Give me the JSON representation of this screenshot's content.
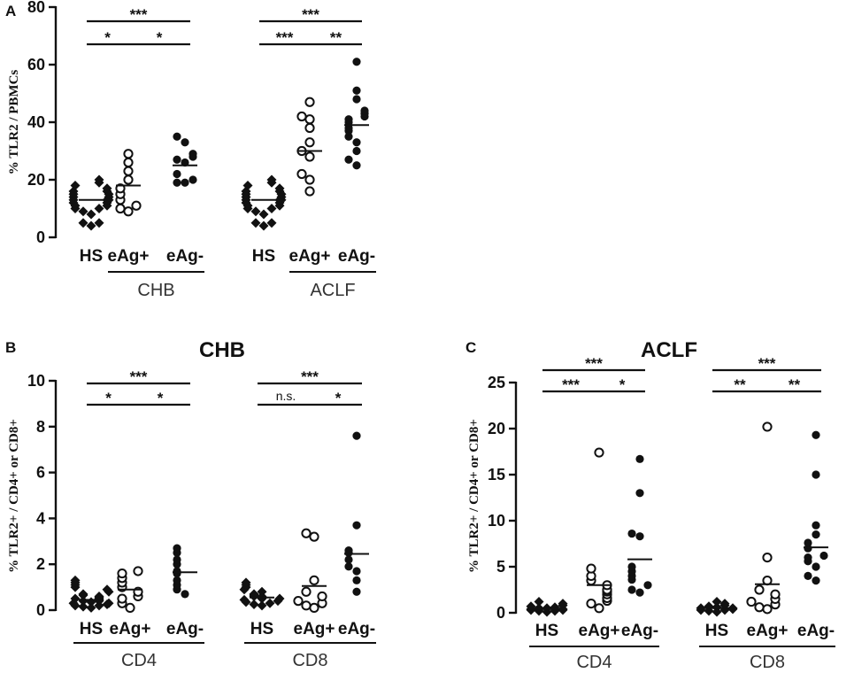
{
  "chart_data": [
    {
      "id": "A",
      "type": "scatter",
      "panel_letter": "A",
      "title": "",
      "ylabel": "% TLR2 / PBMCs",
      "ylim": [
        0,
        80
      ],
      "yticks": [
        "0",
        "20",
        "40",
        "60",
        "80"
      ],
      "groups": [
        {
          "label": "CHB",
          "categories": [
            {
              "label": "HS",
              "marker": "diamond",
              "mean": 13,
              "values": [
                4,
                5,
                5,
                8,
                9,
                10,
                10,
                11,
                11,
                12,
                12,
                13,
                13,
                13,
                14,
                14,
                15,
                15,
                16,
                16,
                17,
                18,
                19,
                20
              ]
            },
            {
              "label": "eAg+",
              "marker": "open-circle",
              "mean": 18,
              "values": [
                9,
                10,
                11,
                13,
                15,
                17,
                20,
                23,
                26,
                29
              ]
            },
            {
              "label": "eAg-",
              "marker": "filled-circle",
              "mean": 25,
              "values": [
                19,
                19,
                20,
                22,
                26,
                27,
                28,
                29,
                33,
                35
              ]
            }
          ],
          "significance": [
            {
              "from": 0,
              "to": 2,
              "level": 0,
              "label": "***"
            },
            {
              "from": 0,
              "to": 1,
              "level": 1,
              "label": "*"
            },
            {
              "from": 1,
              "to": 2,
              "level": 1,
              "label": "*"
            }
          ]
        },
        {
          "label": "ACLF",
          "categories": [
            {
              "label": "HS",
              "marker": "diamond",
              "mean": 13,
              "values": [
                4,
                5,
                5,
                8,
                9,
                10,
                10,
                11,
                11,
                12,
                12,
                13,
                13,
                13,
                14,
                14,
                15,
                15,
                16,
                16,
                17,
                18,
                19,
                20
              ]
            },
            {
              "label": "eAg+",
              "marker": "open-circle",
              "mean": 30,
              "values": [
                16,
                20,
                22,
                28,
                30,
                33,
                38,
                41,
                42,
                47
              ]
            },
            {
              "label": "eAg-",
              "marker": "filled-circle",
              "mean": 39,
              "values": [
                25,
                27,
                30,
                33,
                35,
                37,
                38,
                40,
                41,
                42,
                43,
                44,
                48,
                51,
                61
              ]
            }
          ],
          "significance": [
            {
              "from": 0,
              "to": 2,
              "level": 0,
              "label": "***"
            },
            {
              "from": 0,
              "to": 1,
              "level": 1,
              "label": "***"
            },
            {
              "from": 1,
              "to": 2,
              "level": 1,
              "label": "**"
            }
          ]
        }
      ]
    },
    {
      "id": "B",
      "type": "scatter",
      "panel_letter": "B",
      "title": "CHB",
      "ylabel": "% TLR2+ / CD4+ or CD8+",
      "ylim": [
        0,
        10
      ],
      "yticks": [
        "0",
        "2",
        "4",
        "6",
        "8",
        "10"
      ],
      "groups": [
        {
          "label": "CD4",
          "categories": [
            {
              "label": "HS",
              "marker": "diamond",
              "mean": 0.45,
              "values": [
                0.1,
                0.15,
                0.2,
                0.2,
                0.25,
                0.3,
                0.3,
                0.35,
                0.4,
                0.4,
                0.45,
                0.5,
                0.5,
                0.55,
                0.6,
                0.65,
                0.7,
                0.8,
                0.9,
                1.0,
                1.1,
                1.2,
                1.3
              ]
            },
            {
              "label": "eAg+",
              "marker": "open-circle",
              "mean": 0.9,
              "values": [
                0.1,
                0.3,
                0.5,
                0.6,
                0.8,
                1.0,
                1.2,
                1.4,
                1.6,
                1.7
              ]
            },
            {
              "label": "eAg-",
              "marker": "filled-circle",
              "mean": 1.65,
              "values": [
                0.7,
                0.9,
                1.1,
                1.3,
                1.6,
                1.7,
                2.0,
                2.2,
                2.5,
                2.7
              ]
            }
          ],
          "significance": [
            {
              "from": 0,
              "to": 2,
              "level": 0,
              "label": "***"
            },
            {
              "from": 0,
              "to": 1,
              "level": 1,
              "label": "*"
            },
            {
              "from": 1,
              "to": 2,
              "level": 1,
              "label": "*"
            }
          ]
        },
        {
          "label": "CD8",
          "categories": [
            {
              "label": "HS",
              "marker": "diamond",
              "mean": 0.55,
              "values": [
                0.2,
                0.25,
                0.3,
                0.35,
                0.4,
                0.45,
                0.5,
                0.5,
                0.55,
                0.6,
                0.6,
                0.65,
                0.7,
                0.8,
                0.9,
                1.0,
                1.1,
                1.2
              ]
            },
            {
              "label": "eAg+",
              "marker": "open-circle",
              "mean": 1.05,
              "values": [
                0.1,
                0.2,
                0.3,
                0.4,
                0.6,
                0.8,
                1.3,
                3.2,
                3.35
              ]
            },
            {
              "label": "eAg-",
              "marker": "filled-circle",
              "mean": 2.45,
              "values": [
                0.8,
                1.3,
                1.7,
                1.9,
                2.2,
                2.5,
                2.6,
                3.7,
                7.6
              ]
            }
          ],
          "significance": [
            {
              "from": 0,
              "to": 2,
              "level": 0,
              "label": "***"
            },
            {
              "from": 0,
              "to": 1,
              "level": 1,
              "label": "n.s."
            },
            {
              "from": 1,
              "to": 2,
              "level": 1,
              "label": "*"
            }
          ]
        }
      ]
    },
    {
      "id": "C",
      "type": "scatter",
      "panel_letter": "C",
      "title": "ACLF",
      "ylabel": "% TLR2+ / CD4+ or CD8+",
      "ylim": [
        0,
        25
      ],
      "yticks": [
        "0",
        "5",
        "10",
        "15",
        "20",
        "25"
      ],
      "groups": [
        {
          "label": "CD4",
          "categories": [
            {
              "label": "HS",
              "marker": "diamond",
              "mean": 0.4,
              "values": [
                0.1,
                0.2,
                0.2,
                0.3,
                0.3,
                0.4,
                0.4,
                0.5,
                0.5,
                0.6,
                0.7,
                0.8,
                1.0,
                1.2
              ]
            },
            {
              "label": "eAg+",
              "marker": "open-circle",
              "mean": 3.0,
              "values": [
                0.5,
                1.0,
                1.3,
                1.6,
                2.0,
                2.3,
                2.5,
                3.0,
                3.5,
                4.0,
                4.8,
                17.4
              ]
            },
            {
              "label": "eAg-",
              "marker": "filled-circle",
              "mean": 5.8,
              "values": [
                2.2,
                2.5,
                3.0,
                3.6,
                4.0,
                4.5,
                5.0,
                8.3,
                8.6,
                13.0,
                16.7
              ]
            }
          ],
          "significance": [
            {
              "from": 0,
              "to": 2,
              "level": 0,
              "label": "***"
            },
            {
              "from": 0,
              "to": 1,
              "level": 1,
              "label": "***"
            },
            {
              "from": 1,
              "to": 2,
              "level": 1,
              "label": "*"
            }
          ]
        },
        {
          "label": "CD8",
          "categories": [
            {
              "label": "HS",
              "marker": "diamond",
              "mean": 0.5,
              "values": [
                0.1,
                0.2,
                0.3,
                0.3,
                0.4,
                0.5,
                0.5,
                0.6,
                0.7,
                0.8,
                1.0,
                1.2
              ]
            },
            {
              "label": "eAg+",
              "marker": "open-circle",
              "mean": 3.1,
              "values": [
                0.4,
                0.6,
                0.9,
                1.2,
                1.5,
                2.0,
                2.5,
                3.5,
                6.0,
                20.2
              ]
            },
            {
              "label": "eAg-",
              "marker": "filled-circle",
              "mean": 7.1,
              "values": [
                3.5,
                4.0,
                5.0,
                5.6,
                6.0,
                6.2,
                7.0,
                7.6,
                8.5,
                9.5,
                15.0,
                19.3
              ]
            }
          ],
          "significance": [
            {
              "from": 0,
              "to": 2,
              "level": 0,
              "label": "***"
            },
            {
              "from": 0,
              "to": 1,
              "level": 1,
              "label": "**"
            },
            {
              "from": 1,
              "to": 2,
              "level": 1,
              "label": "**"
            }
          ]
        }
      ]
    }
  ]
}
